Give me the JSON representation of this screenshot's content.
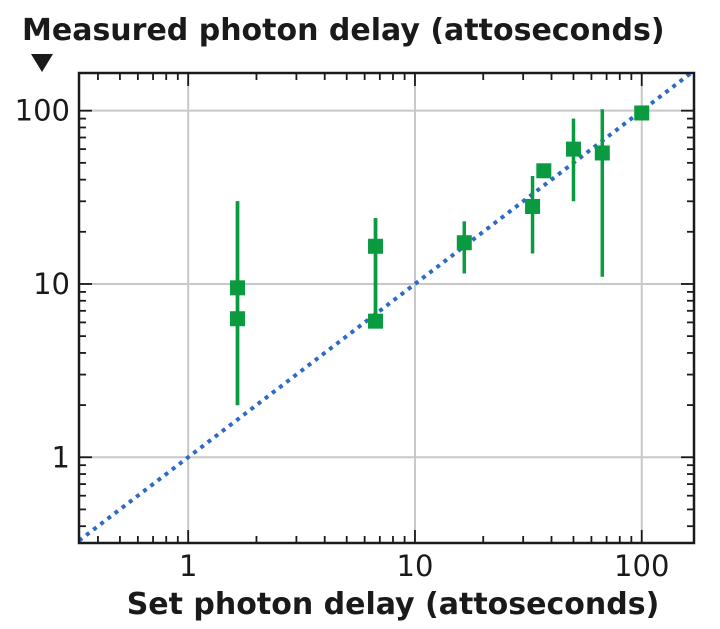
{
  "chart_data": {
    "type": "scatter",
    "title": "",
    "xlabel": "Set photon delay (attoseconds)",
    "ylabel": "Measured photon delay (attoseconds)",
    "xscale": "log",
    "yscale": "log",
    "xlim": [
      0.33,
      170
    ],
    "ylim": [
      0.32,
      165
    ],
    "xticks": [
      1,
      10,
      100
    ],
    "xtick_labels": [
      "1",
      "10",
      "100"
    ],
    "yticks": [
      1,
      10,
      100
    ],
    "ytick_labels": [
      "1",
      "10",
      "100"
    ],
    "grid": true,
    "reference_line": "y = x",
    "colors": {
      "points": "#0a9a3f",
      "reference_line": "#2e6bc4",
      "grid": "#c8c8c8",
      "axes": "#1a1a1a"
    },
    "series": [
      {
        "points": [
          {
            "x": 1.65,
            "y": 9.5,
            "err_low": 2.0,
            "err_high": 30
          },
          {
            "x": 1.65,
            "y": 6.3,
            "err_low": 2.0,
            "err_high": 30
          },
          {
            "x": 6.7,
            "y": 16.5,
            "err_low": 6.1,
            "err_high": 24
          },
          {
            "x": 6.7,
            "y": 6.1,
            "err_low": 6.1,
            "err_high": 24
          },
          {
            "x": 16.5,
            "y": 17.3,
            "err_low": 11.5,
            "err_high": 23
          },
          {
            "x": 33,
            "y": 28,
            "err_low": 15,
            "err_high": 42
          },
          {
            "x": 37,
            "y": 45,
            "err_low": 45,
            "err_high": 45
          },
          {
            "x": 50,
            "y": 60,
            "err_low": 30,
            "err_high": 90
          },
          {
            "x": 67,
            "y": 57,
            "err_low": 11,
            "err_high": 102
          },
          {
            "x": 100,
            "y": 97,
            "err_low": 97,
            "err_high": 97
          }
        ]
      }
    ]
  }
}
